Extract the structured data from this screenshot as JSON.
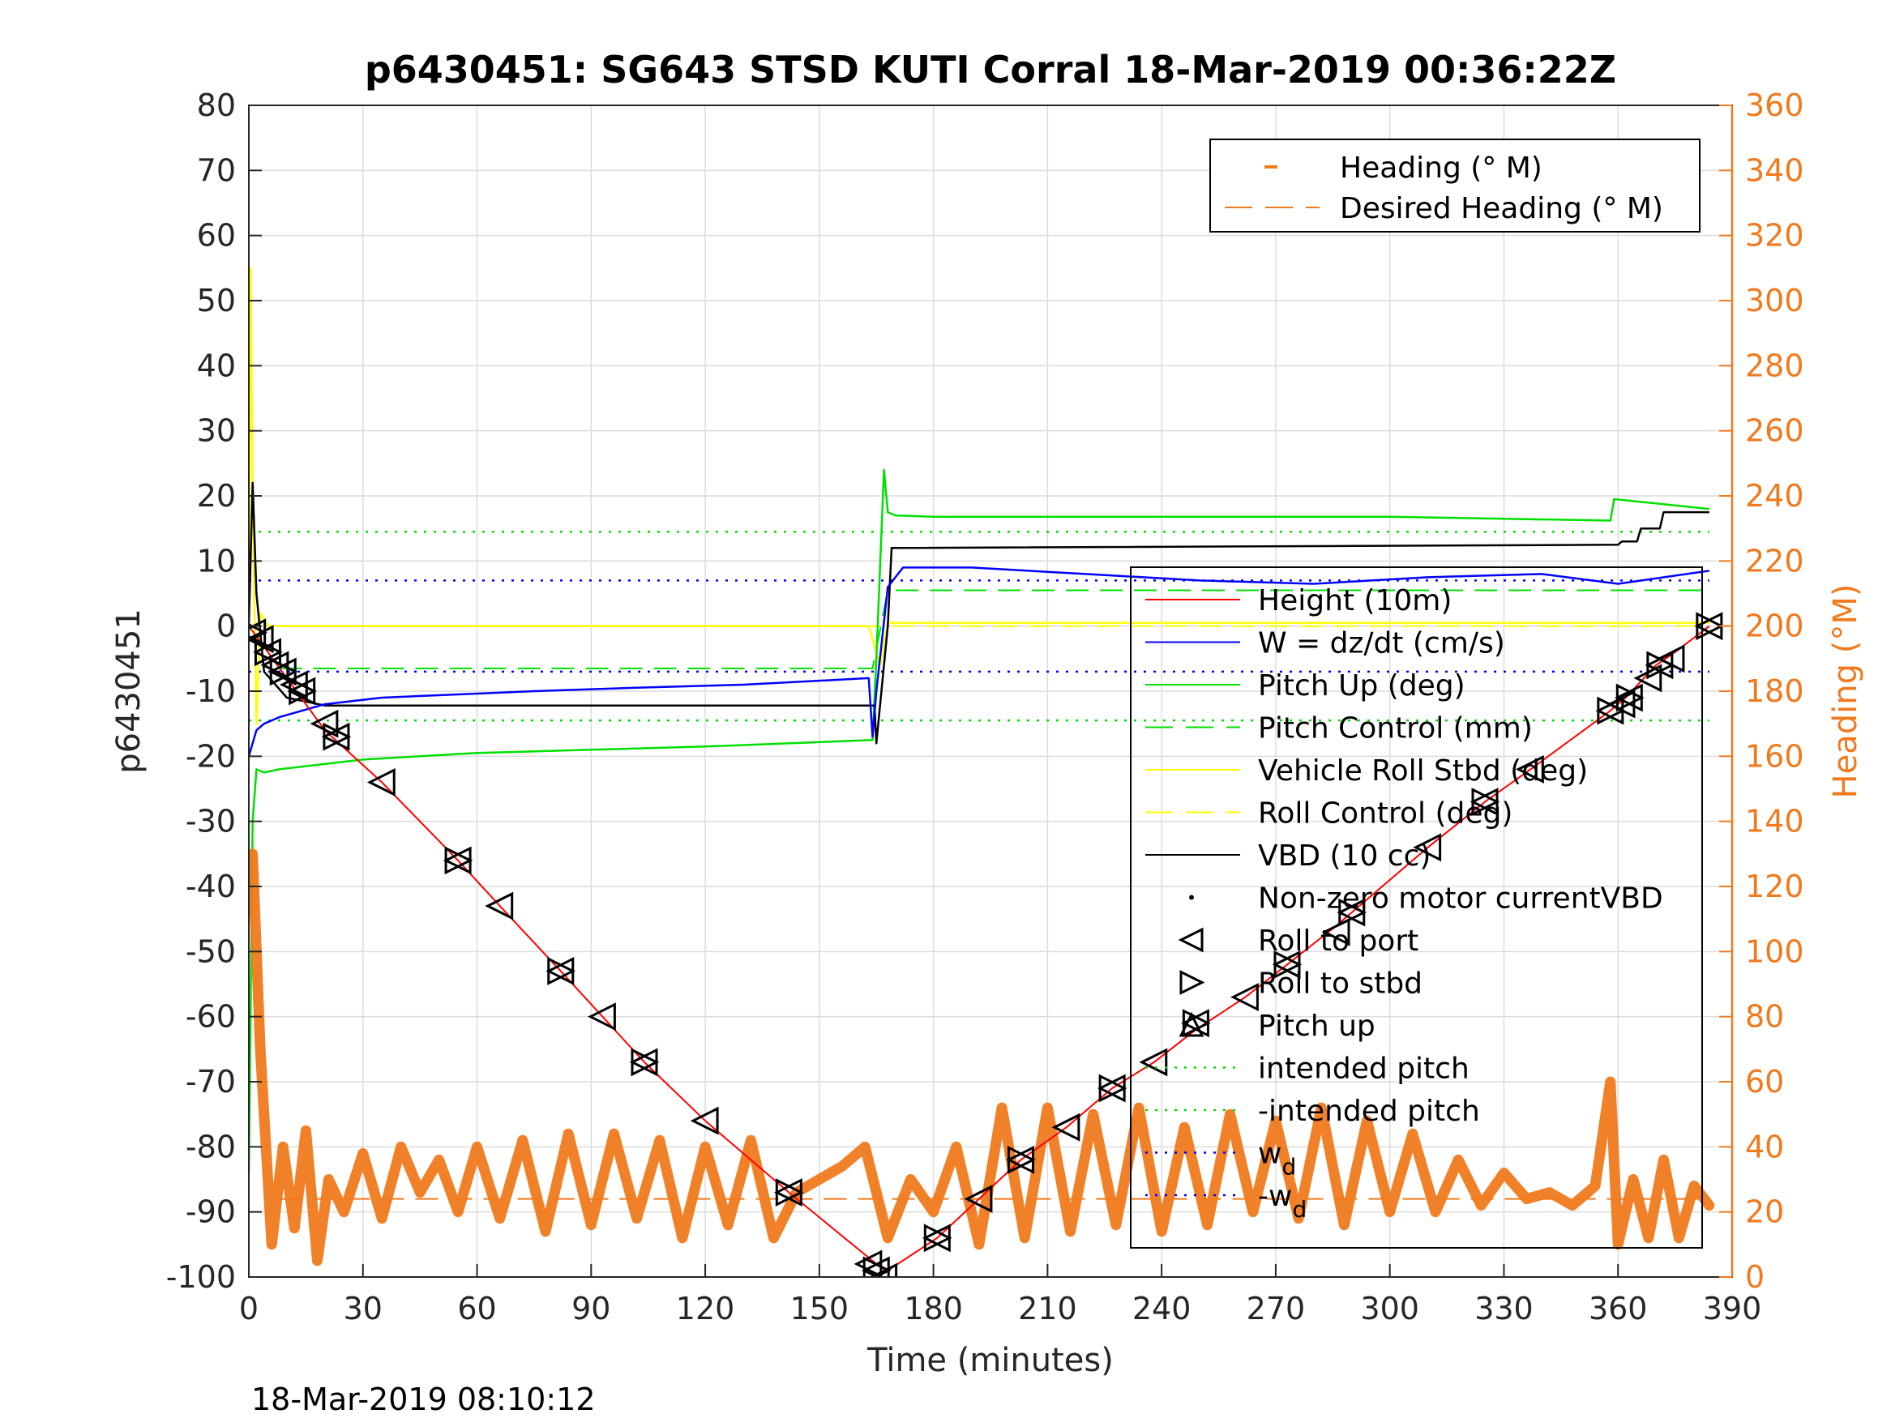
{
  "chart_data": {
    "type": "line",
    "title": "p6430451: SG643 STSD KUTI Corral 18-Mar-2019 00:36:22Z",
    "xlabel": "Time (minutes)",
    "ylabel": "p6430451",
    "ylabel_right": "Heading (°M)",
    "xlim": [
      0,
      390
    ],
    "ylim": [
      -100,
      80
    ],
    "ylim_right": [
      0,
      360
    ],
    "xticks": [
      "0",
      "30",
      "60",
      "90",
      "120",
      "150",
      "180",
      "210",
      "240",
      "270",
      "300",
      "330",
      "360",
      "390"
    ],
    "yticks": [
      "80",
      "70",
      "60",
      "50",
      "40",
      "30",
      "20",
      "10",
      "0",
      "-10",
      "-20",
      "-30",
      "-40",
      "-50",
      "-60",
      "-70",
      "-80",
      "-90",
      "-100"
    ],
    "yticks_right": [
      "360",
      "340",
      "320",
      "300",
      "280",
      "260",
      "240",
      "220",
      "200",
      "180",
      "160",
      "140",
      "120",
      "100",
      "80",
      "60",
      "40",
      "20",
      "0"
    ],
    "grid": true,
    "timestamp": "18-Mar-2019 08:10:12",
    "legend_right_axis": [
      {
        "name": "Heading (° M)",
        "color": "#f07a1e",
        "style": "plus"
      },
      {
        "name": "Desired Heading (° M)",
        "color": "#f07a1e",
        "style": "dash"
      }
    ],
    "legend_left_axis": [
      {
        "name": "Height (10m)",
        "color": "#ff0000",
        "style": "solid"
      },
      {
        "name": "W = dz/dt (cm/s)",
        "color": "#0000ff",
        "style": "solid"
      },
      {
        "name": "Pitch Up (deg)",
        "color": "#00e000",
        "style": "solid"
      },
      {
        "name": "Pitch Control (mm)",
        "color": "#00e000",
        "style": "dash"
      },
      {
        "name": "Vehicle Roll Stbd (deg)",
        "color": "#ffff00",
        "style": "solid"
      },
      {
        "name": "Roll Control (deg)",
        "color": "#ffff00",
        "style": "dash"
      },
      {
        "name": "VBD (10 cc)",
        "color": "#000000",
        "style": "solid"
      },
      {
        "name": "Non-zero motor currentVBD",
        "color": "#000000",
        "style": "dot"
      },
      {
        "name": "Roll to port",
        "color": "#000000",
        "style": "tri-left"
      },
      {
        "name": "Roll to stbd",
        "color": "#000000",
        "style": "tri-right"
      },
      {
        "name": "Pitch up",
        "color": "#000000",
        "style": "tri-up"
      },
      {
        "name": "intended pitch",
        "color": "#00e000",
        "style": "dotted"
      },
      {
        "name": "-intended pitch",
        "color": "#00e000",
        "style": "dotted"
      },
      {
        "name": "w",
        "sub": "d",
        "color": "#0000ff",
        "style": "dotted"
      },
      {
        "name": "-w",
        "sub": "d",
        "color": "#0000ff",
        "style": "dotted"
      }
    ],
    "series": [
      {
        "name": "Height (10m)",
        "color": "#ff0000",
        "x": [
          0,
          5,
          10,
          20,
          35,
          55,
          66,
          82,
          93,
          104,
          120,
          142,
          165,
          168,
          181,
          192,
          203,
          215,
          227,
          238,
          249,
          262,
          273,
          286,
          310,
          325,
          337,
          358,
          362,
          370,
          375,
          384
        ],
        "y": [
          0,
          -4,
          -8,
          -16,
          -24,
          -36,
          -43,
          -53,
          -60,
          -67,
          -76,
          -87,
          -98,
          -99,
          -94,
          -88,
          -82,
          -77,
          -71,
          -67,
          -62,
          -57,
          -52,
          -46,
          -34,
          -27,
          -22,
          -13,
          -11,
          -6,
          -4,
          0
        ]
      },
      {
        "name": "VBD (10 cc)",
        "color": "#000000",
        "x": [
          0,
          1,
          2,
          4,
          10,
          20,
          164.5,
          165,
          168,
          169,
          360,
          361,
          365,
          366,
          371,
          372,
          384
        ],
        "y": [
          0,
          22,
          5,
          -7,
          -11,
          -12.2,
          -12.2,
          -18,
          0,
          12,
          12.5,
          13,
          13,
          15,
          15,
          17.5,
          17.5
        ]
      },
      {
        "name": "Pitch Up (deg)",
        "color": "#00e000",
        "x": [
          0,
          1,
          2,
          4,
          8,
          30,
          60,
          90,
          120,
          164,
          165,
          167,
          168,
          170,
          180,
          240,
          300,
          358,
          359,
          384
        ],
        "y": [
          -84,
          -30,
          -22,
          -22.5,
          -22,
          -20.5,
          -19.5,
          -19,
          -18.5,
          -17.5,
          -5,
          24,
          17.5,
          17,
          16.8,
          16.8,
          16.8,
          16.2,
          19.5,
          18
        ]
      },
      {
        "name": "W = dz/dt (cm/s)",
        "color": "#0000ff",
        "x": [
          0,
          2,
          4,
          8,
          20,
          35,
          55,
          75,
          100,
          130,
          163,
          164,
          165,
          168,
          172,
          190,
          220,
          250,
          280,
          310,
          340,
          360,
          384
        ],
        "y": [
          -20,
          -16,
          -15,
          -14,
          -12,
          -11,
          -10.5,
          -10,
          -9.5,
          -9,
          -8,
          -17,
          -10,
          6,
          9,
          9,
          8,
          7,
          6.5,
          7.5,
          8,
          6.5,
          8.5
        ]
      },
      {
        "name": "Vehicle Roll Stbd (deg)",
        "color": "#ffff00",
        "x": [
          0,
          0.5,
          1,
          2,
          3,
          5,
          10,
          40,
          80,
          120,
          163,
          166,
          168,
          200,
          250,
          300,
          350,
          384
        ],
        "y": [
          0,
          55,
          20,
          -15,
          2,
          0,
          0,
          0,
          0,
          0,
          0,
          -6,
          0.5,
          0.5,
          0.5,
          0.5,
          0.5,
          0.5
        ]
      },
      {
        "name": "Pitch Control (mm)",
        "color": "#00e000",
        "x": [
          8,
          164,
          168,
          384
        ],
        "y": [
          -6.5,
          -6.5,
          5.5,
          5.5
        ]
      },
      {
        "name": "Roll Control (deg)",
        "color": "#ffff00",
        "x": [
          8,
          164,
          168,
          384
        ],
        "y": [
          0,
          0,
          0,
          0
        ]
      },
      {
        "name": "intended pitch",
        "color": "#00e000",
        "x": [
          0,
          384
        ],
        "y": [
          14.5,
          14.5
        ]
      },
      {
        "name": "-intended pitch",
        "color": "#00e000",
        "x": [
          0,
          384
        ],
        "y": [
          -14.5,
          -14.5
        ]
      },
      {
        "name": "w_d",
        "color": "#0000ff",
        "x": [
          0,
          384
        ],
        "y": [
          7,
          7
        ]
      },
      {
        "name": "-w_d",
        "color": "#0000ff",
        "x": [
          0,
          384
        ],
        "y": [
          -7,
          -7
        ]
      },
      {
        "name": "Heading (° M)",
        "color": "#f07a1e",
        "axis": "right",
        "x": [
          1,
          3,
          6,
          9,
          12,
          15,
          18,
          21,
          25,
          30,
          35,
          40,
          45,
          50,
          55,
          60,
          66,
          72,
          78,
          84,
          90,
          96,
          102,
          108,
          114,
          120,
          126,
          132,
          138,
          144,
          150,
          156,
          162,
          168,
          174,
          180,
          186,
          192,
          198,
          204,
          210,
          216,
          222,
          228,
          234,
          240,
          246,
          252,
          258,
          264,
          270,
          276,
          282,
          288,
          294,
          300,
          306,
          312,
          318,
          324,
          330,
          336,
          342,
          348,
          354,
          358,
          360,
          364,
          368,
          372,
          376,
          380,
          384
        ],
        "y": [
          130,
          70,
          10,
          40,
          15,
          45,
          5,
          30,
          20,
          38,
          18,
          40,
          26,
          36,
          20,
          40,
          18,
          42,
          14,
          44,
          16,
          44,
          18,
          42,
          12,
          40,
          16,
          42,
          12,
          26,
          30,
          34,
          40,
          12,
          30,
          20,
          40,
          10,
          52,
          12,
          52,
          14,
          50,
          16,
          52,
          14,
          46,
          16,
          50,
          20,
          48,
          18,
          52,
          16,
          48,
          20,
          44,
          20,
          36,
          22,
          32,
          24,
          26,
          22,
          28,
          60,
          10,
          30,
          12,
          36,
          12,
          28,
          22
        ]
      },
      {
        "name": "Desired Heading (° M)",
        "color": "#f07a1e",
        "axis": "right",
        "style": "dash",
        "x": [
          8,
          384
        ],
        "y": [
          24,
          24
        ]
      }
    ],
    "roll_markers": {
      "x": [
        1,
        3,
        5,
        7,
        9,
        12,
        14,
        20,
        23,
        35,
        55,
        66,
        82,
        93,
        104,
        120,
        142,
        163,
        165,
        167,
        181,
        192,
        203,
        215,
        227,
        238,
        249,
        262,
        273,
        286,
        290,
        310,
        325,
        337,
        358,
        361,
        363,
        368,
        371,
        374,
        384
      ],
      "y": [
        -1,
        -2,
        -4,
        -6,
        -7,
        -9,
        -10,
        -15,
        -17,
        -24,
        -36,
        -43,
        -53,
        -60,
        -67,
        -76,
        -87,
        -98,
        -99,
        -100,
        -94,
        -88,
        -82,
        -77,
        -71,
        -67,
        -61,
        -57,
        -52,
        -47,
        -44,
        -34,
        -27,
        -22,
        -13,
        -12,
        -11,
        -8,
        -6,
        -5,
        0
      ]
    }
  }
}
